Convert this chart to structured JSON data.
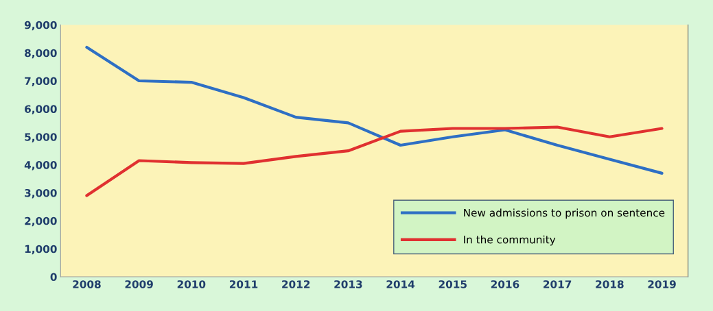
{
  "chart_data": {
    "type": "line",
    "categories": [
      "2008",
      "2009",
      "2010",
      "2011",
      "2012",
      "2013",
      "2014",
      "2015",
      "2016",
      "2017",
      "2018",
      "2019"
    ],
    "series": [
      {
        "name": "New admissions to prison on sentence",
        "color": "#2e6fc4",
        "values": [
          8200,
          7000,
          6950,
          6400,
          5700,
          5500,
          4700,
          5000,
          5250,
          4700,
          4200,
          3700
        ]
      },
      {
        "name": "In the community",
        "color": "#e03030",
        "values": [
          2900,
          4150,
          4080,
          4050,
          4300,
          4500,
          5200,
          5300,
          5300,
          5350,
          5000,
          5300
        ]
      }
    ],
    "ylim": [
      0,
      9000
    ],
    "yticks": [
      {
        "value": 0,
        "label": "0"
      },
      {
        "value": 1000,
        "label": "1,000"
      },
      {
        "value": 2000,
        "label": "2,000"
      },
      {
        "value": 3000,
        "label": "3,000"
      },
      {
        "value": 4000,
        "label": "4,000"
      },
      {
        "value": 5000,
        "label": "5,000"
      },
      {
        "value": 6000,
        "label": "6,000"
      },
      {
        "value": 7000,
        "label": "7,000"
      },
      {
        "value": 8000,
        "label": "8,000"
      },
      {
        "value": 9000,
        "label": "9,000"
      }
    ],
    "grid": false,
    "legend": "bottom right",
    "marker": "none",
    "line_style": "solid"
  }
}
